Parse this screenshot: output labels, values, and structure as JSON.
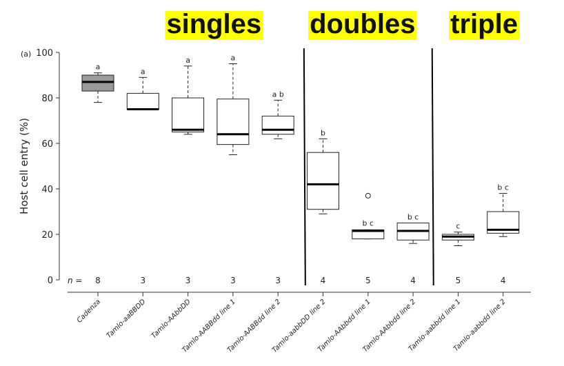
{
  "chart_data": {
    "type": "box",
    "panel_tag": "(a)",
    "ylabel": "Host cell entry (%)",
    "ylim": [
      0,
      100
    ],
    "yticks": [
      0,
      20,
      40,
      60,
      80,
      100
    ],
    "n_prefix": "n =",
    "highlight_color": "#ffff00",
    "groups": [
      {
        "label": "singles",
        "from": 1,
        "to": 4
      },
      {
        "label": "doubles",
        "from": 5,
        "to": 7
      },
      {
        "label": "triple",
        "from": 8,
        "to": 9
      }
    ],
    "boxes": [
      {
        "category": "Cadenza",
        "min": 78,
        "q1": 83,
        "median": 87,
        "q3": 90,
        "max": 91,
        "outliers": [],
        "letter": "a",
        "n": "8",
        "fill": "#9a9a9a"
      },
      {
        "category": "Tamlo-aaBBDD",
        "min": 75,
        "q1": 75,
        "median": 75,
        "q3": 82,
        "max": 89,
        "outliers": [],
        "letter": "a",
        "n": "3",
        "fill": "#ffffff"
      },
      {
        "category": "Tamlo-AAbbDD",
        "min": 64,
        "q1": 65,
        "median": 66,
        "q3": 80,
        "max": 94,
        "outliers": [],
        "letter": "a",
        "n": "3",
        "fill": "#ffffff"
      },
      {
        "category": "Tamlo-AABBdd line 1",
        "min": 55,
        "q1": 59.5,
        "median": 64,
        "q3": 79.5,
        "max": 95,
        "outliers": [],
        "letter": "a",
        "n": "3",
        "fill": "#ffffff"
      },
      {
        "category": "Tamlo-AABBdd line 2",
        "min": 62,
        "q1": 64,
        "median": 66,
        "q3": 72,
        "max": 79,
        "outliers": [],
        "letter": "a b",
        "n": "3",
        "fill": "#ffffff"
      },
      {
        "category": "Tamlo-aabbDD line 2",
        "min": 29,
        "q1": 31,
        "median": 42,
        "q3": 56,
        "max": 62,
        "outliers": [],
        "letter": "b",
        "n": "4",
        "fill": "#ffffff"
      },
      {
        "category": "Tamlo-AAbbdd line 1",
        "min": 18,
        "q1": 18,
        "median": 21.5,
        "q3": 22,
        "max": 22,
        "outliers": [
          37
        ],
        "letter": "b c",
        "n": "5",
        "fill": "#ffffff"
      },
      {
        "category": "Tamlo-AAbbdd line 2",
        "min": 16,
        "q1": 17.5,
        "median": 21.5,
        "q3": 25,
        "max": 25,
        "outliers": [],
        "letter": "b c",
        "n": "4",
        "fill": "#ffffff"
      },
      {
        "category": "Tamlo-aabbdd line 1",
        "min": 15,
        "q1": 17.5,
        "median": 19,
        "q3": 20,
        "max": 21,
        "outliers": [],
        "letter": "c",
        "n": "5",
        "fill": "#ffffff"
      },
      {
        "category": "Tamlo-aabbdd line 2",
        "min": 19,
        "q1": 20.5,
        "median": 22,
        "q3": 30,
        "max": 38,
        "outliers": [],
        "letter": "b c",
        "n": "4",
        "fill": "#ffffff"
      }
    ]
  }
}
